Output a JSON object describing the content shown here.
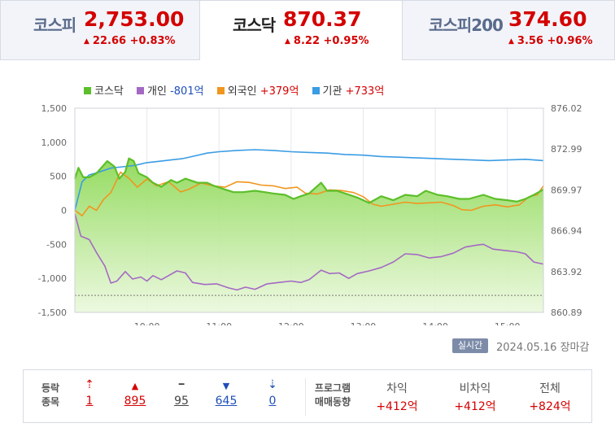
{
  "tabs": [
    {
      "name": "코스피",
      "value": "2,753.00",
      "change": "22.66 +0.83%",
      "active": false
    },
    {
      "name": "코스닥",
      "value": "870.37",
      "change": "8.22 +0.95%",
      "active": true
    },
    {
      "name": "코스피200",
      "value": "374.60",
      "change": "3.56 +0.96%",
      "active": false
    }
  ],
  "legend": [
    {
      "label": "코스닥",
      "value": "",
      "color": "#5cbf2a"
    },
    {
      "label": "개인",
      "value": "-801억",
      "color": "#a469c4"
    },
    {
      "label": "외국인",
      "value": "+379억",
      "color": "#f0961e"
    },
    {
      "label": "기관",
      "value": "+733억",
      "color": "#3a9ce4"
    }
  ],
  "realtime_label": "실시간",
  "date_label": "2024.05.16 장마감",
  "chart_data": {
    "type": "line",
    "x_ticks": [
      "10:00",
      "11:00",
      "12:00",
      "13:00",
      "14:00",
      "15:00"
    ],
    "y_left_ticks": [
      "1,500",
      "1,000",
      "500",
      "0",
      "-500",
      "-1,000",
      "-1,500"
    ],
    "y_right_ticks": [
      "876.02",
      "872.99",
      "869.97",
      "866.94",
      "863.92",
      "860.89"
    ],
    "ylim_left": [
      -1500,
      1500
    ],
    "ylim_right": [
      860.89,
      876.02
    ],
    "reference_line_right": 862.15,
    "x_range": [
      "09:00",
      "15:30"
    ],
    "series": [
      {
        "name": "코스닥",
        "axis": "right",
        "color": "#5cbf2a",
        "points": [
          [
            "09:00",
            870.8
          ],
          [
            "09:03",
            871.6
          ],
          [
            "09:07",
            870.9
          ],
          [
            "09:12",
            870.9
          ],
          [
            "09:18",
            871.2
          ],
          [
            "09:27",
            872.1
          ],
          [
            "09:33",
            871.7
          ],
          [
            "09:37",
            870.8
          ],
          [
            "09:42",
            871.3
          ],
          [
            "09:45",
            872.3
          ],
          [
            "09:49",
            872.1
          ],
          [
            "09:53",
            871.2
          ],
          [
            "10:00",
            870.9
          ],
          [
            "10:05",
            870.5
          ],
          [
            "10:12",
            870.2
          ],
          [
            "10:20",
            870.7
          ],
          [
            "10:25",
            870.5
          ],
          [
            "10:32",
            870.8
          ],
          [
            "10:42",
            870.5
          ],
          [
            "10:50",
            870.5
          ],
          [
            "10:55",
            870.3
          ],
          [
            "11:05",
            870.0
          ],
          [
            "11:12",
            869.8
          ],
          [
            "11:20",
            869.8
          ],
          [
            "11:30",
            869.9
          ],
          [
            "11:38",
            869.8
          ],
          [
            "11:45",
            869.7
          ],
          [
            "11:55",
            869.6
          ],
          [
            "12:02",
            869.3
          ],
          [
            "12:08",
            869.5
          ],
          [
            "12:15",
            869.7
          ],
          [
            "12:25",
            870.5
          ],
          [
            "12:30",
            869.9
          ],
          [
            "12:38",
            869.9
          ],
          [
            "12:45",
            869.7
          ],
          [
            "12:55",
            869.4
          ],
          [
            "13:05",
            869.0
          ],
          [
            "13:15",
            869.5
          ],
          [
            "13:25",
            869.2
          ],
          [
            "13:35",
            869.6
          ],
          [
            "13:45",
            869.5
          ],
          [
            "13:52",
            869.9
          ],
          [
            "14:02",
            869.6
          ],
          [
            "14:10",
            869.5
          ],
          [
            "14:20",
            869.3
          ],
          [
            "14:28",
            869.3
          ],
          [
            "14:40",
            869.6
          ],
          [
            "14:50",
            869.3
          ],
          [
            "15:00",
            869.2
          ],
          [
            "15:08",
            869.1
          ],
          [
            "15:15",
            869.3
          ],
          [
            "15:22",
            869.6
          ],
          [
            "15:30",
            870.0
          ]
        ]
      },
      {
        "name": "개인",
        "axis": "left",
        "color": "#a469c4",
        "points": [
          [
            "09:00",
            -50
          ],
          [
            "09:05",
            -380
          ],
          [
            "09:12",
            -430
          ],
          [
            "09:18",
            -620
          ],
          [
            "09:25",
            -820
          ],
          [
            "09:30",
            -1070
          ],
          [
            "09:35",
            -1040
          ],
          [
            "09:42",
            -900
          ],
          [
            "09:48",
            -1010
          ],
          [
            "09:55",
            -980
          ],
          [
            "10:00",
            -1040
          ],
          [
            "10:05",
            -960
          ],
          [
            "10:12",
            -1020
          ],
          [
            "10:18",
            -960
          ],
          [
            "10:25",
            -890
          ],
          [
            "10:32",
            -920
          ],
          [
            "10:38",
            -1060
          ],
          [
            "10:48",
            -1090
          ],
          [
            "10:58",
            -1080
          ],
          [
            "11:08",
            -1140
          ],
          [
            "11:15",
            -1170
          ],
          [
            "11:22",
            -1130
          ],
          [
            "11:30",
            -1160
          ],
          [
            "11:40",
            -1080
          ],
          [
            "11:50",
            -1060
          ],
          [
            "12:00",
            -1040
          ],
          [
            "12:08",
            -1060
          ],
          [
            "12:15",
            -1020
          ],
          [
            "12:25",
            -880
          ],
          [
            "12:32",
            -930
          ],
          [
            "12:40",
            -920
          ],
          [
            "12:48",
            -1000
          ],
          [
            "12:55",
            -930
          ],
          [
            "13:05",
            -890
          ],
          [
            "13:15",
            -840
          ],
          [
            "13:25",
            -760
          ],
          [
            "13:35",
            -640
          ],
          [
            "13:45",
            -650
          ],
          [
            "13:55",
            -700
          ],
          [
            "14:05",
            -680
          ],
          [
            "14:15",
            -630
          ],
          [
            "14:25",
            -540
          ],
          [
            "14:35",
            -510
          ],
          [
            "14:40",
            -500
          ],
          [
            "14:48",
            -570
          ],
          [
            "14:58",
            -590
          ],
          [
            "15:08",
            -610
          ],
          [
            "15:15",
            -640
          ],
          [
            "15:22",
            -760
          ],
          [
            "15:30",
            -790
          ]
        ]
      },
      {
        "name": "외국인",
        "axis": "left",
        "color": "#f0961e",
        "points": [
          [
            "09:00",
            0
          ],
          [
            "09:06",
            -80
          ],
          [
            "09:12",
            60
          ],
          [
            "09:18",
            0
          ],
          [
            "09:24",
            160
          ],
          [
            "09:30",
            260
          ],
          [
            "09:38",
            560
          ],
          [
            "09:45",
            470
          ],
          [
            "09:52",
            340
          ],
          [
            "10:00",
            460
          ],
          [
            "10:08",
            360
          ],
          [
            "10:18",
            420
          ],
          [
            "10:28",
            270
          ],
          [
            "10:35",
            310
          ],
          [
            "10:45",
            400
          ],
          [
            "10:55",
            360
          ],
          [
            "11:05",
            340
          ],
          [
            "11:15",
            420
          ],
          [
            "11:25",
            410
          ],
          [
            "11:35",
            370
          ],
          [
            "11:45",
            360
          ],
          [
            "11:55",
            320
          ],
          [
            "12:05",
            340
          ],
          [
            "12:12",
            250
          ],
          [
            "12:22",
            240
          ],
          [
            "12:32",
            300
          ],
          [
            "12:42",
            290
          ],
          [
            "12:52",
            260
          ],
          [
            "13:00",
            200
          ],
          [
            "13:08",
            90
          ],
          [
            "13:15",
            60
          ],
          [
            "13:25",
            90
          ],
          [
            "13:35",
            120
          ],
          [
            "13:45",
            100
          ],
          [
            "13:55",
            110
          ],
          [
            "14:05",
            120
          ],
          [
            "14:15",
            70
          ],
          [
            "14:22",
            10
          ],
          [
            "14:30",
            0
          ],
          [
            "14:40",
            60
          ],
          [
            "14:50",
            80
          ],
          [
            "15:00",
            50
          ],
          [
            "15:10",
            80
          ],
          [
            "15:18",
            200
          ],
          [
            "15:25",
            230
          ],
          [
            "15:30",
            360
          ]
        ]
      },
      {
        "name": "기관",
        "axis": "left",
        "color": "#3a9ce4",
        "points": [
          [
            "09:00",
            0
          ],
          [
            "09:06",
            420
          ],
          [
            "09:12",
            520
          ],
          [
            "09:20",
            560
          ],
          [
            "09:30",
            620
          ],
          [
            "09:40",
            640
          ],
          [
            "09:50",
            660
          ],
          [
            "10:00",
            700
          ],
          [
            "10:10",
            720
          ],
          [
            "10:20",
            740
          ],
          [
            "10:30",
            760
          ],
          [
            "10:40",
            800
          ],
          [
            "10:50",
            840
          ],
          [
            "11:00",
            860
          ],
          [
            "11:15",
            880
          ],
          [
            "11:30",
            890
          ],
          [
            "11:45",
            880
          ],
          [
            "12:00",
            860
          ],
          [
            "12:15",
            850
          ],
          [
            "12:30",
            840
          ],
          [
            "12:45",
            820
          ],
          [
            "13:00",
            810
          ],
          [
            "13:15",
            790
          ],
          [
            "13:30",
            780
          ],
          [
            "13:45",
            770
          ],
          [
            "14:00",
            760
          ],
          [
            "14:15",
            750
          ],
          [
            "14:30",
            740
          ],
          [
            "14:45",
            730
          ],
          [
            "15:00",
            740
          ],
          [
            "15:15",
            750
          ],
          [
            "15:30",
            730
          ]
        ]
      }
    ]
  },
  "bottom": {
    "updown_label_1": "등락",
    "updown_label_2": "종목",
    "updown": [
      {
        "icon": "upper-limit-icon",
        "symbol": "⇡",
        "count": "1",
        "color": "#d40000"
      },
      {
        "icon": "rise-icon",
        "symbol": "▲",
        "count": "895",
        "color": "#d40000"
      },
      {
        "icon": "flat-icon",
        "symbol": "━",
        "count": "95",
        "color": "#444444"
      },
      {
        "icon": "fall-icon",
        "symbol": "▼",
        "count": "645",
        "color": "#1f4eb8"
      },
      {
        "icon": "lower-limit-icon",
        "symbol": "⇣",
        "count": "0",
        "color": "#1f4eb8"
      }
    ],
    "program_label_1": "프로그램",
    "program_label_2": "매매동향",
    "program": [
      {
        "label": "차익",
        "value": "+412억"
      },
      {
        "label": "비차익",
        "value": "+412억"
      },
      {
        "label": "전체",
        "value": "+824억"
      }
    ]
  }
}
